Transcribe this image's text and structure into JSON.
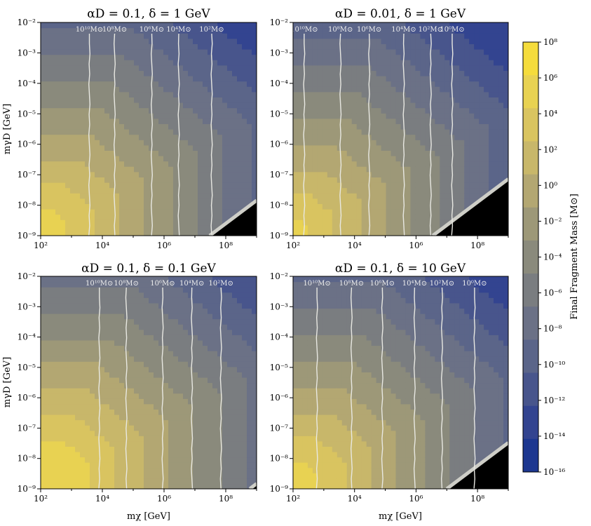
{
  "chart_data": [
    {
      "type": "heatmap",
      "title": "αD = 0.1, δ = 1 GeV",
      "xlabel": "",
      "ylabel": "mγD [GeV]",
      "x_scale": "log",
      "y_scale": "log",
      "xlim": [
        100,
        1000000000
      ],
      "ylim": [
        1e-09,
        0.01
      ],
      "x_ticks": [
        "10²",
        "10⁴",
        "10⁶",
        "10⁸"
      ],
      "y_ticks": [
        "10⁻⁹",
        "10⁻⁸",
        "10⁻⁷",
        "10⁻⁶",
        "10⁻⁵",
        "10⁻⁴",
        "10⁻³",
        "10⁻²"
      ],
      "contour_labels": [
        "10¹⁰M⊙",
        "10⁸M⊙",
        "10⁶M⊙",
        "10⁴M⊙",
        "10²M⊙"
      ],
      "contour_x": [
        3800,
        25000,
        400000,
        3000000,
        35000000
      ],
      "excluded_boundary_x_at_ymin": 30000000,
      "offset": 0
    },
    {
      "type": "heatmap",
      "title": "αD = 0.01, δ = 1 GeV",
      "xlabel": "",
      "ylabel": "",
      "x_scale": "log",
      "y_scale": "log",
      "xlim": [
        100,
        1000000000
      ],
      "ylim": [
        1e-09,
        0.01
      ],
      "x_ticks": [
        "10²",
        "10⁴",
        "10⁶",
        "10⁸"
      ],
      "y_ticks": [
        "10⁻⁹",
        "10⁻⁸",
        "10⁻⁷",
        "10⁻⁶",
        "10⁻⁵",
        "10⁻⁴",
        "10⁻³",
        "10⁻²"
      ],
      "contour_labels": [
        "10¹⁰M⊙",
        "10⁸M⊙",
        "10⁶M⊙",
        "10⁴M⊙",
        "10²M⊙",
        "10⁰M⊙"
      ],
      "contour_x": [
        230,
        3500,
        30000,
        400000,
        3000000,
        15000000
      ],
      "excluded_boundary_x_at_ymin": 3500000,
      "offset": -0.5
    },
    {
      "type": "heatmap",
      "title": "αD = 0.1, δ = 0.1 GeV",
      "xlabel": "mχ [GeV]",
      "ylabel": "mγD [GeV]",
      "x_scale": "log",
      "y_scale": "log",
      "xlim": [
        100,
        1000000000
      ],
      "ylim": [
        1e-09,
        0.01
      ],
      "x_ticks": [
        "10²",
        "10⁴",
        "10⁶",
        "10⁸"
      ],
      "y_ticks": [
        "10⁻⁹",
        "10⁻⁸",
        "10⁻⁷",
        "10⁻⁶",
        "10⁻⁵",
        "10⁻⁴",
        "10⁻³",
        "10⁻²"
      ],
      "contour_labels": [
        "10¹⁰M⊙",
        "10⁸M⊙",
        "10⁶M⊙",
        "10⁴M⊙",
        "10²M⊙"
      ],
      "contour_x": [
        8000,
        60000,
        900000,
        8000000,
        70000000
      ],
      "excluded_boundary_x_at_ymin": 600000000,
      "offset": 1
    },
    {
      "type": "heatmap",
      "title": "αD = 0.1, δ = 10 GeV",
      "xlabel": "mχ [GeV]",
      "ylabel": "",
      "x_scale": "log",
      "y_scale": "log",
      "xlim": [
        100,
        1000000000
      ],
      "ylim": [
        1e-09,
        0.01
      ],
      "x_ticks": [
        "10²",
        "10⁴",
        "10⁶",
        "10⁸"
      ],
      "y_ticks": [
        "10⁻⁹",
        "10⁻⁸",
        "10⁻⁷",
        "10⁻⁶",
        "10⁻⁵",
        "10⁻⁴",
        "10⁻³",
        "10⁻²"
      ],
      "contour_labels": [
        "10¹⁰M⊙",
        "10⁸M⊙",
        "10⁶M⊙",
        "10⁴M⊙",
        "10²M⊙",
        "10⁰M⊙"
      ],
      "contour_x": [
        600,
        8000,
        80000,
        900000,
        7000000,
        80000000
      ],
      "excluded_boundary_x_at_ymin": 10000000,
      "offset": 0
    }
  ],
  "colorbar": {
    "label": "Final Fragment Mass [M⊙]",
    "tick_labels": [
      "10⁸",
      "10⁶",
      "10⁴",
      "10²",
      "10⁰",
      "10⁻²",
      "10⁻⁴",
      "10⁻⁶",
      "10⁻⁸",
      "10⁻¹⁰",
      "10⁻¹²",
      "10⁻¹⁴",
      "10⁻¹⁶"
    ],
    "colors": [
      "#f5dc3c",
      "#e8d252",
      "#d9c460",
      "#c8b76a",
      "#b3a772",
      "#9d9878",
      "#8a8a7c",
      "#7a7d80",
      "#6b7186",
      "#5b6589",
      "#48558c",
      "#334490",
      "#1d3790",
      "#0a2a6e"
    ]
  }
}
